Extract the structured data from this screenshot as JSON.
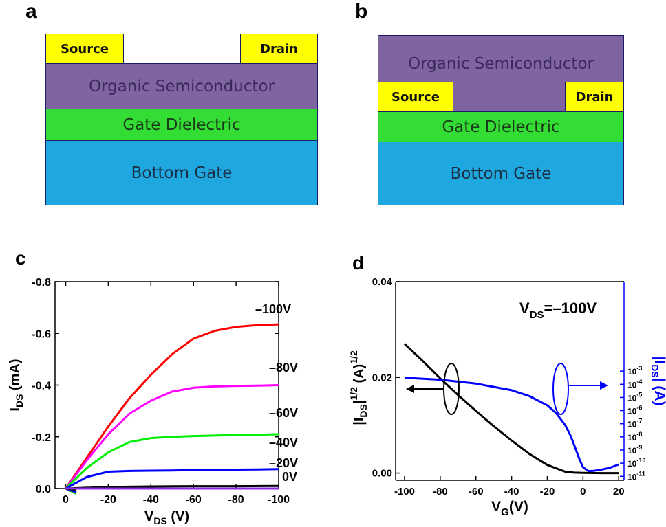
{
  "panels": {
    "a": {
      "label": "a",
      "source": "Source",
      "drain": "Drain",
      "semiconductor": "Organic Semiconductor",
      "dielectric": "Gate Dielectric",
      "gate": "Bottom Gate"
    },
    "b": {
      "label": "b",
      "source": "Source",
      "drain": "Drain",
      "semiconductor": "Organic Semiconductor",
      "dielectric": "Gate Dielectric",
      "gate": "Bottom Gate"
    }
  },
  "colors": {
    "semiconductor": "#8064a2",
    "dielectric": "#33dd33",
    "gate": "#1fa7e0",
    "contact": "#ffff00"
  },
  "chart_data": [
    {
      "panel": "c",
      "type": "line",
      "xlabel": "V",
      "xlabel_sub": "DS",
      "xlabel_unit": " (V)",
      "ylabel": "I",
      "ylabel_sub": "DS",
      "ylabel_unit": " (mA)",
      "xlim": [
        5,
        -100
      ],
      "ylim": [
        0,
        -0.8
      ],
      "xticks": [
        0,
        -20,
        -40,
        -60,
        -80,
        -100
      ],
      "xtick_labels": [
        "0",
        "-20",
        "-40",
        "-60",
        "-80",
        "-100"
      ],
      "yticks": [
        0,
        -0.2,
        -0.4,
        -0.6,
        -0.8
      ],
      "ytick_labels": [
        "0.0",
        "-0.2",
        "-0.4",
        "-0.6",
        "-0.8"
      ],
      "series": [
        {
          "name": "–100V",
          "color": "#ff0000",
          "x": [
            -5,
            0,
            -10,
            -20,
            -30,
            -40,
            -50,
            -60,
            -70,
            -80,
            -90,
            -100
          ],
          "y": [
            0.02,
            0,
            -0.12,
            -0.24,
            -0.35,
            -0.44,
            -0.52,
            -0.58,
            -0.61,
            -0.625,
            -0.632,
            -0.635
          ]
        },
        {
          "name": "–80V",
          "color": "#ff00ff",
          "x": [
            -5,
            0,
            -10,
            -20,
            -30,
            -40,
            -50,
            -60,
            -70,
            -80,
            -90,
            -100
          ],
          "y": [
            0.02,
            0,
            -0.11,
            -0.21,
            -0.29,
            -0.34,
            -0.375,
            -0.39,
            -0.395,
            -0.397,
            -0.398,
            -0.4
          ]
        },
        {
          "name": "–60V",
          "color": "#00ee00",
          "x": [
            -5,
            0,
            -10,
            -20,
            -30,
            -40,
            -50,
            -60,
            -70,
            -80,
            -90,
            -100
          ],
          "y": [
            0.02,
            0,
            -0.08,
            -0.14,
            -0.18,
            -0.195,
            -0.2,
            -0.203,
            -0.205,
            -0.207,
            -0.208,
            -0.21
          ]
        },
        {
          "name": "–40V",
          "color": "#0000ff",
          "x": [
            -5,
            0,
            -10,
            -20,
            -30,
            -40,
            -50,
            -60,
            -70,
            -80,
            -90,
            -100
          ],
          "y": [
            0.015,
            0,
            -0.045,
            -0.065,
            -0.068,
            -0.069,
            -0.07,
            -0.071,
            -0.072,
            -0.073,
            -0.074,
            -0.075
          ]
        },
        {
          "name": "–20V",
          "color": "#000000",
          "x": [
            -5,
            0,
            -20,
            -40,
            -60,
            -80,
            -100
          ],
          "y": [
            0.005,
            0,
            -0.006,
            -0.008,
            -0.009,
            -0.009,
            -0.01
          ]
        },
        {
          "name": "0V",
          "color": "#8a2be2",
          "x": [
            -5,
            0,
            -20,
            -40,
            -60,
            -80,
            -100
          ],
          "y": [
            0,
            0,
            0,
            0,
            0,
            0,
            0
          ]
        }
      ]
    },
    {
      "panel": "d",
      "type": "line",
      "xlabel": "V",
      "xlabel_sub": "G",
      "xlabel_unit": "(V)",
      "ylabel_left": "|I",
      "ylabel_left_sub": "DS",
      "ylabel_left_rest": "|",
      "ylabel_left_exp": "1/2",
      "ylabel_left_unit": "(A)",
      "ylabel_left_unit_exp": "1/2",
      "ylabel_right": "|I",
      "ylabel_right_sub": "DS",
      "ylabel_right_rest": "| (A)",
      "annotation": "V",
      "annotation_sub": "DS",
      "annotation_value": "=–100V",
      "xlim": [
        -105,
        23
      ],
      "ylim_left": [
        -0.0015,
        0.04
      ],
      "ylim_right_log": [
        -11.3,
        3.8
      ],
      "xticks": [
        -100,
        -80,
        -60,
        -40,
        -20,
        0,
        20
      ],
      "xtick_labels": [
        "-100",
        "-80",
        "-60",
        "-40",
        "-20",
        "0",
        "20"
      ],
      "yticks_left": [
        0,
        0.02,
        0.04
      ],
      "ytick_left_labels": [
        "0.00",
        "0.02",
        "0.04"
      ],
      "yticks_right_exp": [
        -11,
        -10,
        -9,
        -8,
        -7,
        -6,
        -5,
        -4,
        -3
      ],
      "ytick_right_base": "10",
      "series": [
        {
          "name": "sqrt",
          "axis": "left",
          "color": "#000000",
          "x": [
            -100,
            -90,
            -80,
            -70,
            -60,
            -50,
            -40,
            -30,
            -20,
            -10,
            -5,
            0,
            10,
            20
          ],
          "y": [
            0.027,
            0.0235,
            0.0198,
            0.0163,
            0.013,
            0.0098,
            0.0068,
            0.004,
            0.0017,
            0.0003,
            0.0001,
            5e-05,
            0,
            0
          ]
        },
        {
          "name": "log",
          "axis": "right",
          "color": "#0000ff",
          "x": [
            -100,
            -80,
            -60,
            -40,
            -30,
            -20,
            -15,
            -10,
            -7,
            -5,
            -2,
            0,
            3,
            6,
            10,
            15,
            20
          ],
          "y": [
            -3.5,
            -3.65,
            -3.95,
            -4.45,
            -4.9,
            -5.6,
            -6.2,
            -7.1,
            -7.9,
            -8.6,
            -9.7,
            -10.3,
            -10.6,
            -10.58,
            -10.5,
            -10.35,
            -10.1
          ]
        }
      ]
    }
  ],
  "panel_labels": {
    "c": "c",
    "d": "d"
  }
}
